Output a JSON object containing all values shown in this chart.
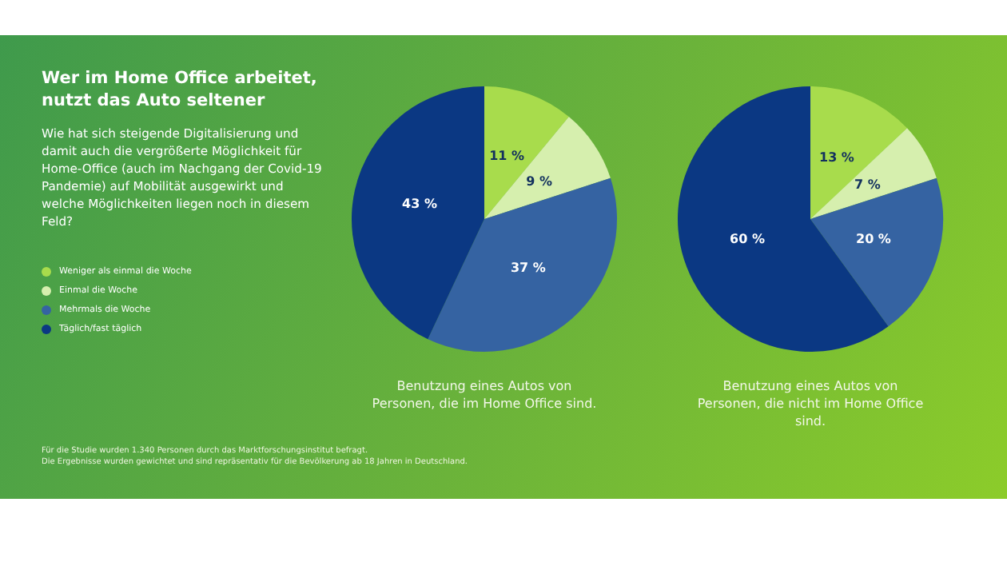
{
  "chart_data": [
    {
      "type": "pie",
      "title": "Wer im Home Office arbeitet, nutzt das Auto seltener",
      "subtitle": "Wie hat sich steigende Digitalisierung und damit auch die vergrößerte Möglichkeit für Home-Office (auch im Nachgang der Covid-19 Pandemie) auf Mobilität ausgewirkt und welche Möglichkeiten liegen noch in diesem Feld?",
      "legend": "left",
      "categories": [
        "Weniger als einmal die Woche",
        "Einmal die Woche",
        "Mehrmals die Woche",
        "Täglich/fast täglich"
      ],
      "values": [
        11,
        9,
        37,
        43
      ],
      "value_labels": [
        "11 %",
        "9 %",
        "37 %",
        "43 %"
      ],
      "colors": [
        "#a8dc4c",
        "#d6efae",
        "#3563a2",
        "#0b3883"
      ],
      "annotations": [
        "Benutzung eines Autos von Personen, die im Home Office sind.",
        "Für die Studie wurden 1.340 Personen durch das Marktforschungsinstitut befragt.",
        "Die Ergebnisse wurden gewichtet und sind repräsentativ für die Bevölkerung ab 18 Jahren in Deutschland."
      ]
    },
    {
      "type": "pie",
      "categories": [
        null,
        null,
        null,
        null
      ],
      "values": [
        13,
        7,
        20,
        60
      ],
      "value_labels": [
        "13 %",
        "7 %",
        "20 %",
        "60 %"
      ],
      "colors": [
        "#a8dc4c",
        "#d6efae",
        "#3563a2",
        "#0b3883"
      ],
      "annotations": [
        "Benutzung eines Autos von Personen, die nicht im Home Office sind."
      ]
    }
  ]
}
